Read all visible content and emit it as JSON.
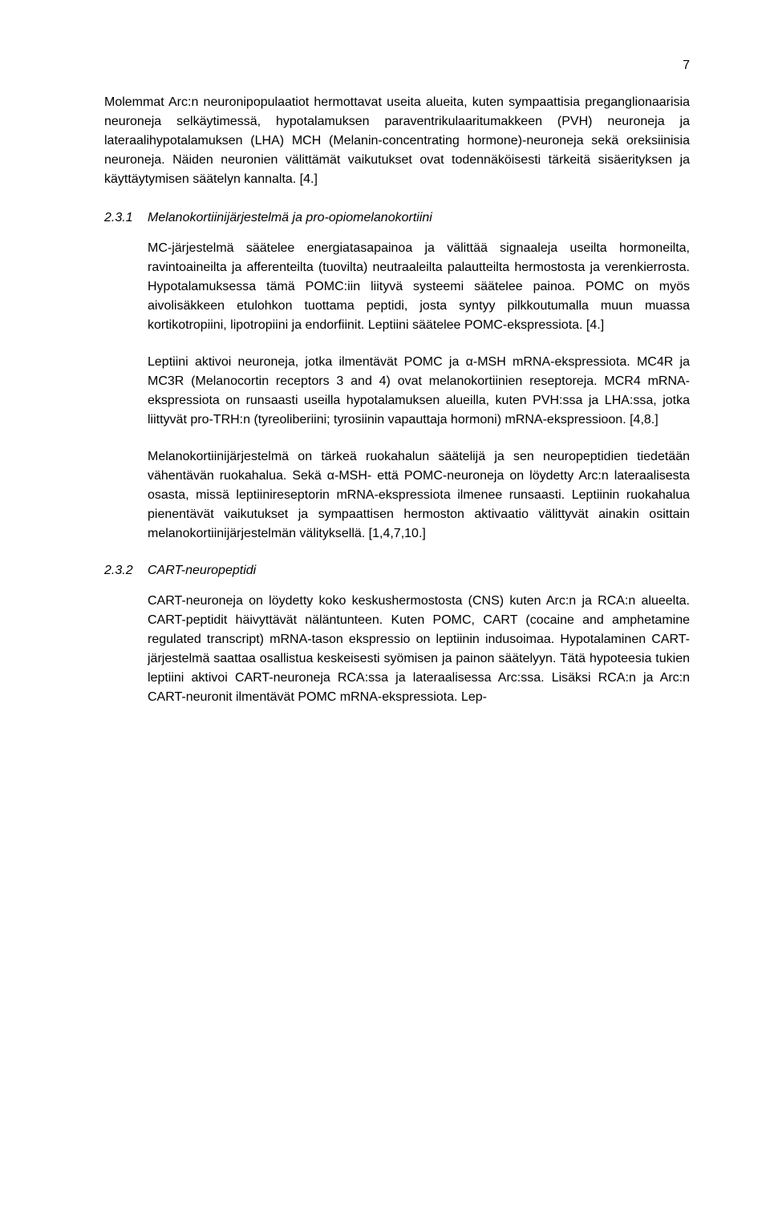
{
  "page_number": "7",
  "intro_paragraph": "Molemmat Arc:n neuronipopulaatiot hermottavat useita alueita, kuten sympaattisia preganglionaarisia neuroneja selkäytimessä, hypotalamuksen paraventrikulaaritumakkeen (PVH) neuroneja ja lateraalihypotalamuksen (LHA) MCH (Melanin-concentrating hormone)-neuroneja sekä oreksiinisia neuroneja. Näiden neuronien välittämät vaikutukset ovat todennäköisesti tärkeitä sisäerityksen ja käyttäytymisen säätelyn kannalta. [4.]",
  "sections": [
    {
      "num": "2.3.1",
      "title": "Melanokortiinijärjestelmä ja pro-opiomelanokortiini",
      "paragraphs": [
        "MC-järjestelmä säätelee energiatasapainoa ja välittää signaaleja useilta hormoneilta, ravintoaineilta ja afferenteilta (tuovilta) neutraaleilta palautteilta hermostosta ja verenkierrosta. Hypotalamuksessa tämä POMC:iin liityvä systeemi säätelee painoa. POMC on myös aivolisäkkeen etulohkon tuottama peptidi, josta syntyy pilkkoutumalla muun muassa kortikotropiini, lipotropiini ja endorfiinit. Leptiini säätelee POMC-ekspressiota. [4.]",
        "Leptiini aktivoi neuroneja, jotka ilmentävät POMC ja α-MSH mRNA-ekspressiota. MC4R ja MC3R (Melanocortin receptors 3 and 4) ovat melanokortiinien reseptoreja. MCR4 mRNA-ekspressiota on runsaasti useilla hypotalamuksen alueilla, kuten PVH:ssa ja LHA:ssa, jotka liittyvät pro-TRH:n (tyreoliberiini; tyrosiinin vapauttaja hormoni) mRNA-ekspressioon. [4,8.]",
        "Melanokortiinijärjestelmä on tärkeä ruokahalun säätelijä ja sen neuropeptidien tiedetään vähentävän ruokahalua. Sekä α-MSH- että POMC-neuroneja on löydetty Arc:n lateraalisesta osasta, missä leptiinireseptorin mRNA-ekspressiota ilmenee runsaasti. Leptiinin ruokahalua pienentävät vaikutukset ja sympaattisen hermoston aktivaatio välittyvät ainakin osittain melanokortiinijärjestelmän välityksellä. [1,4,7,10.]"
      ]
    },
    {
      "num": "2.3.2",
      "title": "CART-neuropeptidi",
      "paragraphs": [
        "CART-neuroneja on löydetty koko keskushermostosta (CNS) kuten Arc:n ja RCA:n alueelta. CART-peptidit häivyttävät näläntunteen. Kuten POMC, CART (cocaine and amphetamine regulated transcript) mRNA-tason ekspressio on leptiinin indusoimaa. Hypotalaminen CART-järjestelmä saattaa osallistua keskeisesti syömisen ja painon säätelyyn. Tätä hypoteesia tukien leptiini aktivoi CART-neuroneja RCA:ssa ja lateraalisessa Arc:ssa. Lisäksi RCA:n ja Arc:n CART-neuronit ilmentävät POMC mRNA-ekspressiota. Lep-"
      ]
    }
  ]
}
